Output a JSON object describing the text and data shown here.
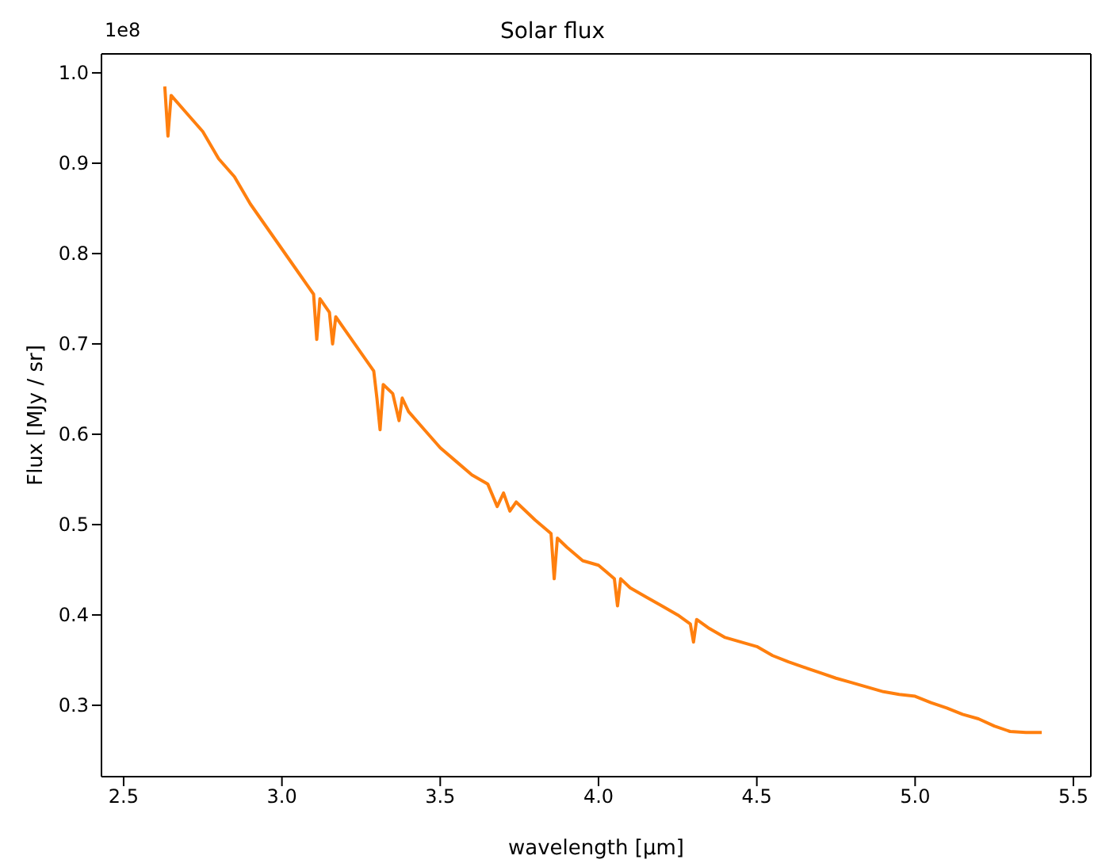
{
  "chart_data": {
    "type": "line",
    "title": "Solar flux",
    "xlabel": "wavelength [μm]",
    "ylabel": "Flux [MJy / sr]",
    "annotations": [
      "1e8"
    ],
    "xlim": [
      2.43,
      5.555
    ],
    "ylim": [
      0.221,
      1.021
    ],
    "xticks": [
      {
        "value": 2.5,
        "label": "2.5"
      },
      {
        "value": 3,
        "label": "3.0"
      },
      {
        "value": 3.5,
        "label": "3.5"
      },
      {
        "value": 4,
        "label": "4.0"
      },
      {
        "value": 4.5,
        "label": "4.5"
      },
      {
        "value": 5,
        "label": "5.0"
      },
      {
        "value": 5.5,
        "label": "5.5"
      }
    ],
    "yticks": [
      {
        "value": 0.3,
        "label": "0.3"
      },
      {
        "value": 0.4,
        "label": "0.4"
      },
      {
        "value": 0.5,
        "label": "0.5"
      },
      {
        "value": 0.6,
        "label": "0.6"
      },
      {
        "value": 0.7,
        "label": "0.7"
      },
      {
        "value": 0.8,
        "label": "0.8"
      },
      {
        "value": 0.9,
        "label": "0.9"
      },
      {
        "value": 1,
        "label": "1.0"
      }
    ],
    "grid": false,
    "legend": false,
    "marker": "none",
    "line_style": "solid",
    "x": [
      2.63,
      2.64,
      2.65,
      2.7,
      2.75,
      2.8,
      2.85,
      2.9,
      2.95,
      3.0,
      3.05,
      3.08,
      3.1,
      3.11,
      3.12,
      3.15,
      3.16,
      3.17,
      3.2,
      3.25,
      3.29,
      3.3,
      3.31,
      3.32,
      3.35,
      3.37,
      3.38,
      3.4,
      3.45,
      3.5,
      3.55,
      3.6,
      3.65,
      3.68,
      3.7,
      3.72,
      3.74,
      3.8,
      3.85,
      3.86,
      3.87,
      3.9,
      3.95,
      4.0,
      4.05,
      4.06,
      4.07,
      4.1,
      4.15,
      4.2,
      4.25,
      4.29,
      4.3,
      4.31,
      4.35,
      4.4,
      4.45,
      4.5,
      4.55,
      4.6,
      4.65,
      4.7,
      4.75,
      4.8,
      4.85,
      4.9,
      4.95,
      5.0,
      5.05,
      5.1,
      5.15,
      5.2,
      5.25,
      5.3,
      5.35,
      5.4
    ],
    "series": [
      {
        "color": "#ff7f0e",
        "values": [
          0.985,
          0.93,
          0.975,
          0.955,
          0.935,
          0.905,
          0.885,
          0.855,
          0.83,
          0.805,
          0.78,
          0.765,
          0.755,
          0.705,
          0.75,
          0.735,
          0.7,
          0.73,
          0.715,
          0.69,
          0.67,
          0.64,
          0.605,
          0.655,
          0.645,
          0.615,
          0.64,
          0.625,
          0.605,
          0.585,
          0.57,
          0.555,
          0.545,
          0.52,
          0.535,
          0.515,
          0.525,
          0.505,
          0.49,
          0.44,
          0.485,
          0.475,
          0.46,
          0.455,
          0.44,
          0.41,
          0.44,
          0.43,
          0.42,
          0.41,
          0.4,
          0.39,
          0.37,
          0.395,
          0.385,
          0.375,
          0.37,
          0.365,
          0.355,
          0.348,
          0.342,
          0.336,
          0.33,
          0.325,
          0.32,
          0.315,
          0.312,
          0.31,
          0.303,
          0.297,
          0.29,
          0.285,
          0.277,
          0.271,
          0.27,
          0.27
        ]
      }
    ]
  }
}
